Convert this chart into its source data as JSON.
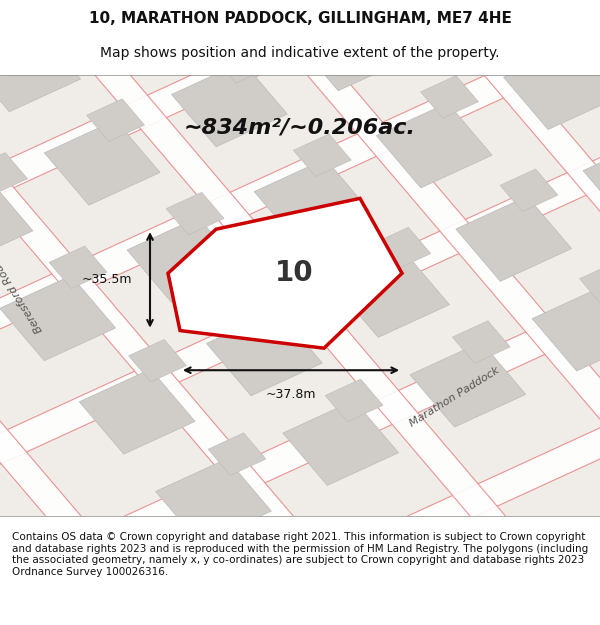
{
  "title_line1": "10, MARATHON PADDOCK, GILLINGHAM, ME7 4HE",
  "title_line2": "Map shows position and indicative extent of the property.",
  "area_text": "~834m²/~0.206ac.",
  "property_label": "10",
  "dim_vertical": "~35.5m",
  "dim_horizontal": "~37.8m",
  "street_label": "Marathon Paddock",
  "road_label": "Beresford Road",
  "footer_text": "Contains OS data © Crown copyright and database right 2021. This information is subject to Crown copyright and database rights 2023 and is reproduced with the permission of HM Land Registry. The polygons (including the associated geometry, namely x, y co-ordinates) are subject to Crown copyright and database rights 2023 Ordnance Survey 100026316.",
  "bg_color": "#f0ede8",
  "map_bg_color": "#f0ede8",
  "property_fill": "#ffffff",
  "property_edge": "#cc0000",
  "building_fill": "#d0ccc8",
  "building_edge": "#aaaaaa",
  "grid_line_color": "#e88888",
  "road_fill": "#ffffff",
  "road_edge": "#cccccc",
  "title_fontsize": 11,
  "subtitle_fontsize": 10,
  "area_fontsize": 18,
  "label_fontsize": 18,
  "footer_fontsize": 7.5,
  "map_xlim": [
    0,
    1
  ],
  "map_ylim": [
    0,
    1
  ]
}
